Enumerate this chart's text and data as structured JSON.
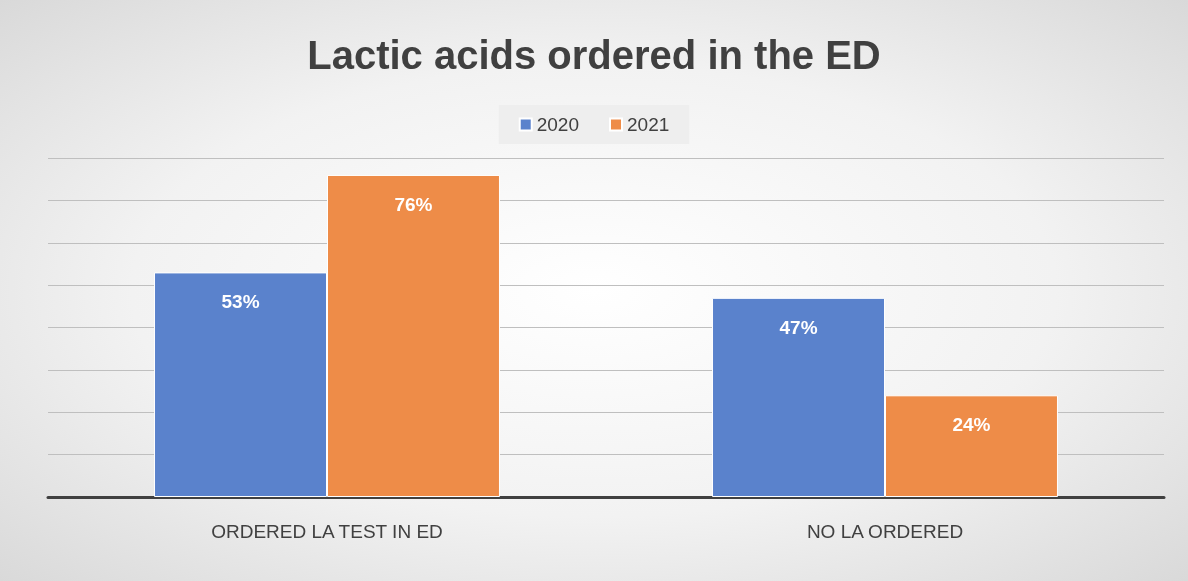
{
  "chart_data": {
    "type": "bar",
    "title": "Lactic acids ordered in the ED",
    "categories": [
      "ORDERED LA TEST IN ED",
      "NO LA ORDERED"
    ],
    "series": [
      {
        "name": "2020",
        "color": "#5a82cc",
        "values": [
          53,
          47
        ],
        "value_labels": [
          "53%",
          "47%"
        ]
      },
      {
        "name": "2021",
        "color": "#ee8c48",
        "values": [
          76,
          24
        ],
        "value_labels": [
          "76%",
          "24%"
        ]
      }
    ],
    "grid": "y",
    "legend": "top",
    "tick_labels": "x"
  }
}
